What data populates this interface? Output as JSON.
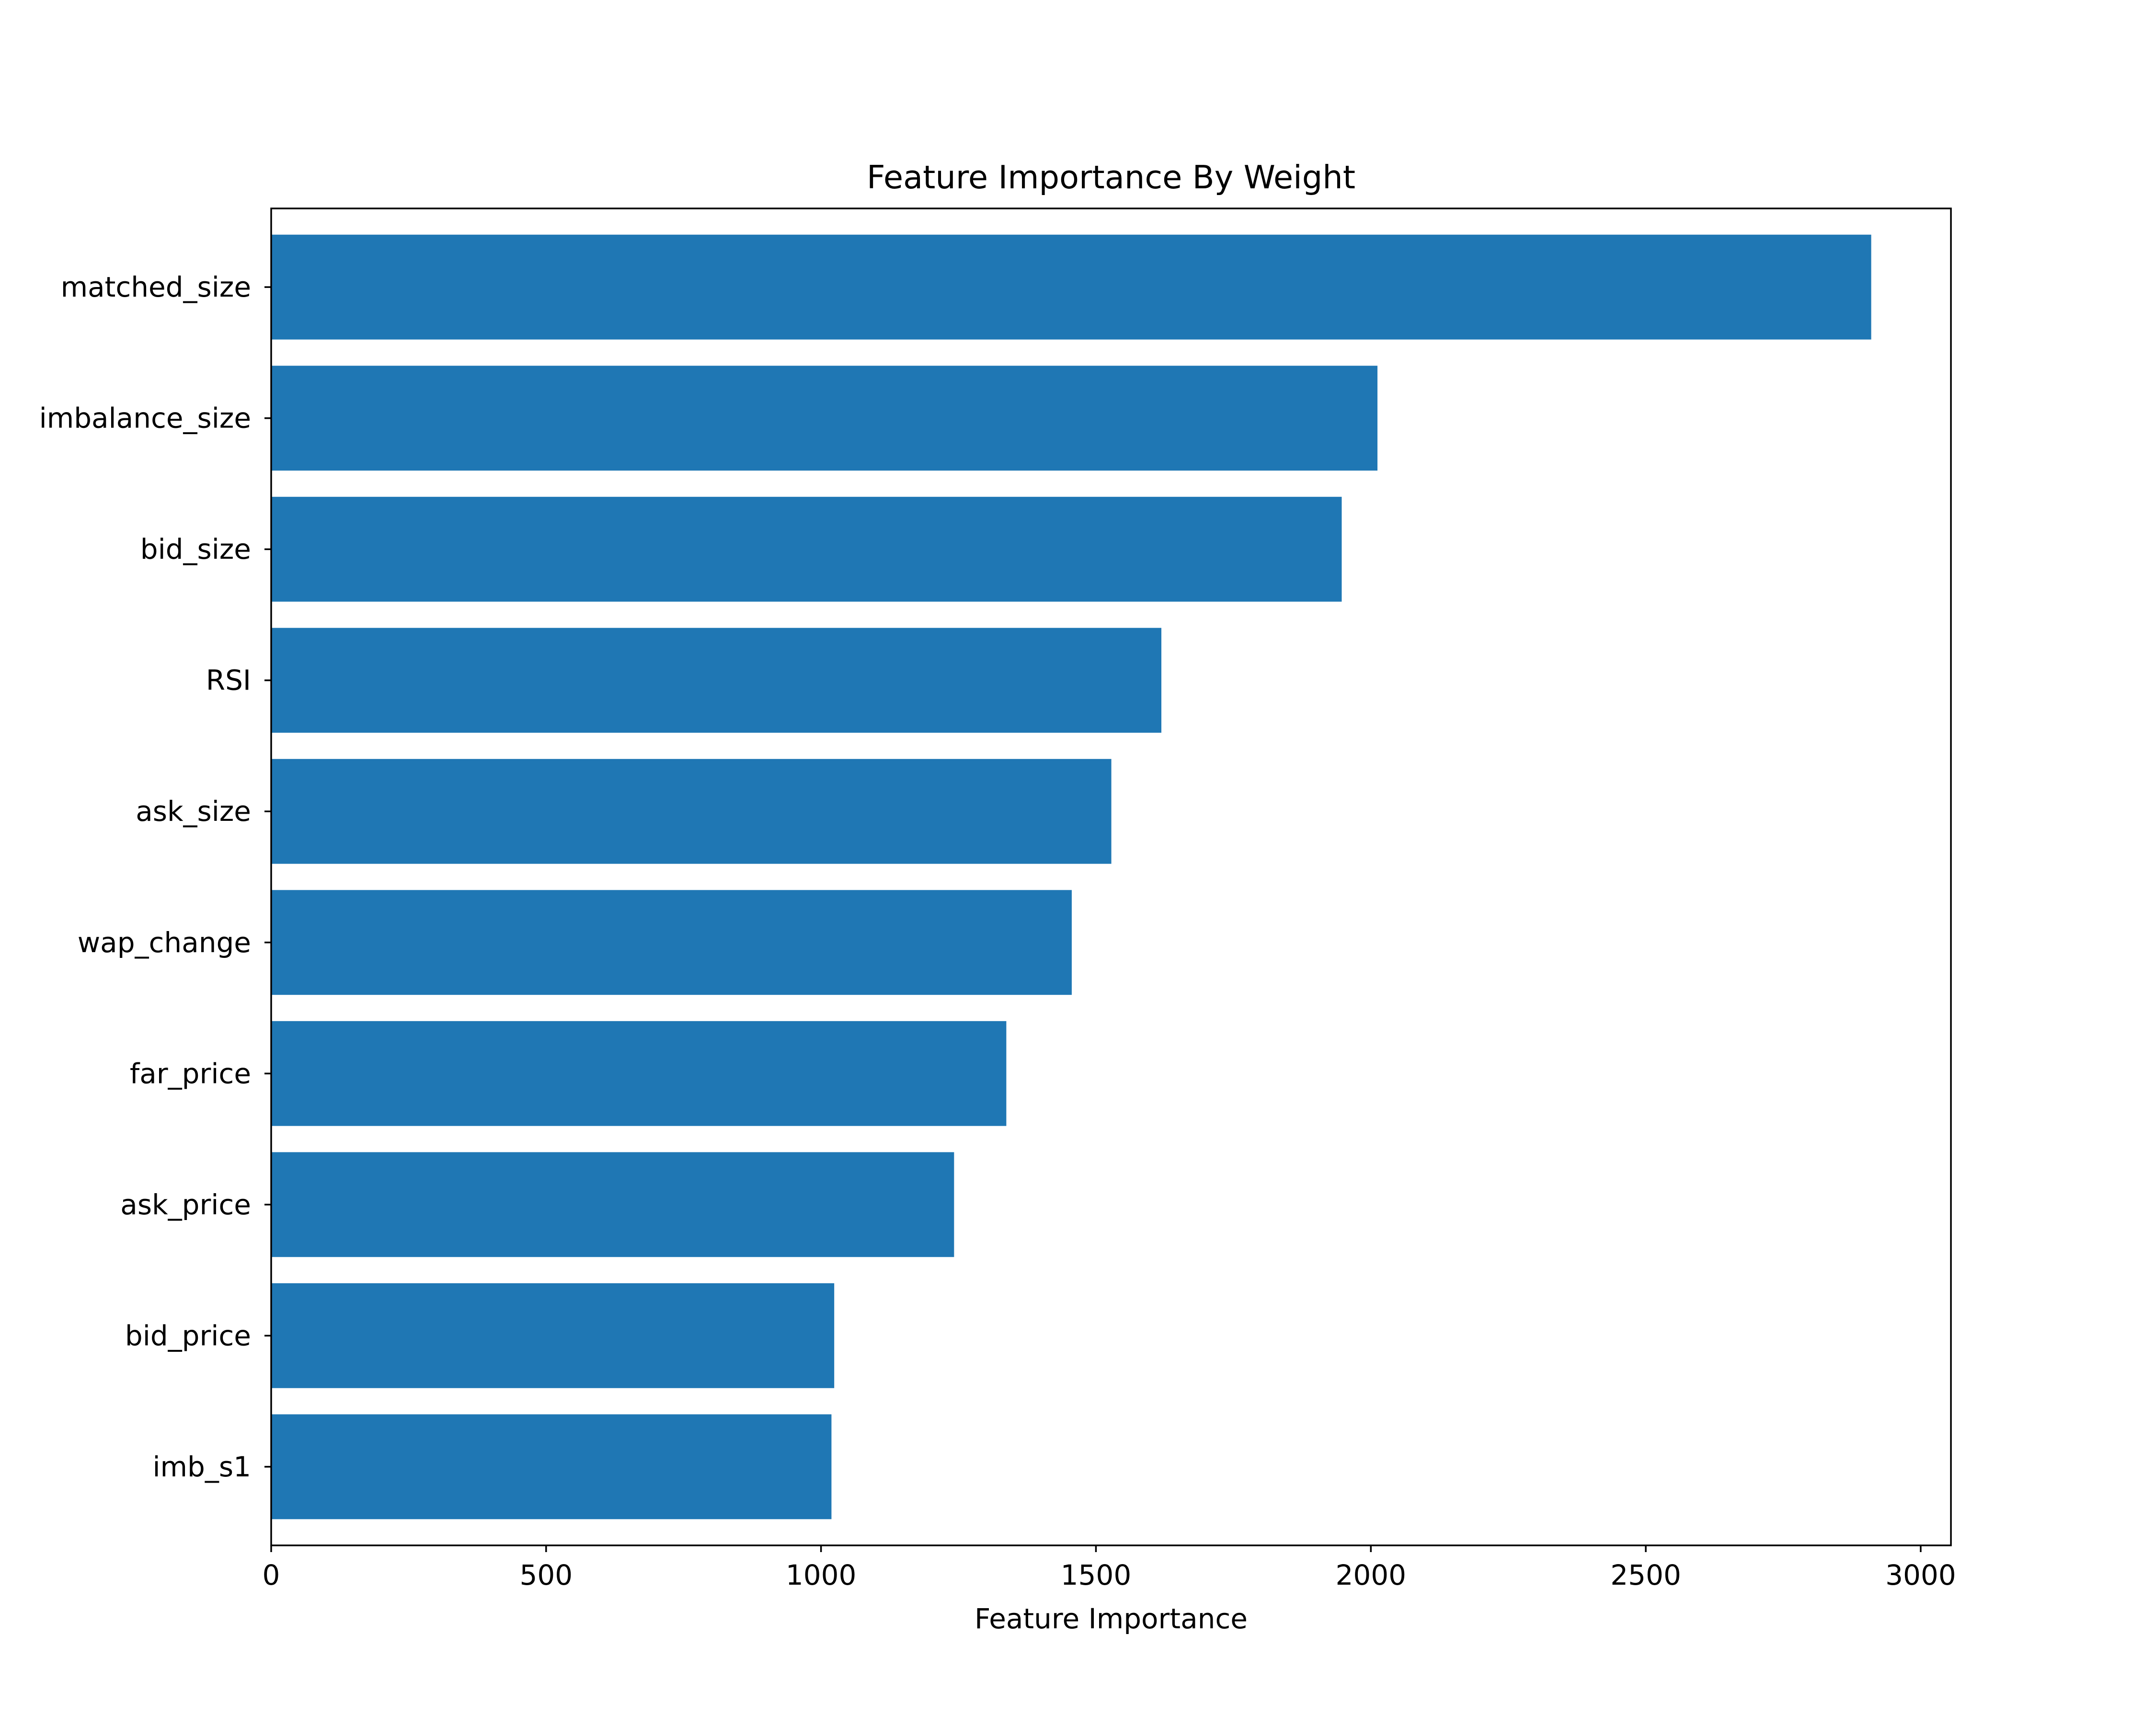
{
  "chart_data": {
    "type": "bar",
    "orientation": "horizontal",
    "title": "Feature Importance By Weight",
    "xlabel": "Feature Importance",
    "ylabel": "",
    "categories": [
      "matched_size",
      "imbalance_size",
      "bid_size",
      "RSI",
      "ask_size",
      "wap_change",
      "far_price",
      "ask_price",
      "bid_price",
      "imb_s1"
    ],
    "values": [
      2910,
      2012,
      1947,
      1619,
      1528,
      1456,
      1337,
      1242,
      1024,
      1019
    ],
    "xlim": [
      0,
      3055
    ],
    "xticks": [
      0,
      500,
      1000,
      1500,
      2000,
      2500,
      3000
    ],
    "xtick_labels": [
      "0",
      "500",
      "1000",
      "1500",
      "2000",
      "2500",
      "3000"
    ],
    "grid": false,
    "legend": "none",
    "bar_color": "#1f77b4"
  }
}
